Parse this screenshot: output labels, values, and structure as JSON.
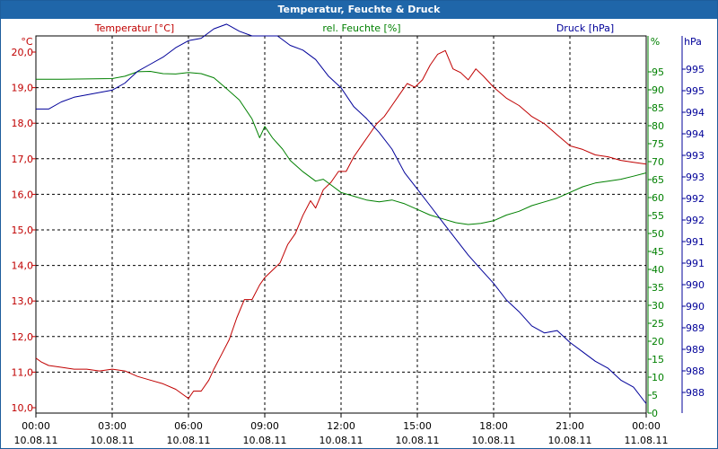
{
  "window": {
    "title": "Temperatur, Feuchte & Druck"
  },
  "chart_data": {
    "type": "line",
    "title": "Temperatur, Feuchte & Druck",
    "x_ticks": [
      {
        "time": "00:00",
        "date": "10.08.11"
      },
      {
        "time": "03:00",
        "date": "10.08.11"
      },
      {
        "time": "06:00",
        "date": "10.08.11"
      },
      {
        "time": "09:00",
        "date": "10.08.11"
      },
      {
        "time": "12:00",
        "date": "10.08.11"
      },
      {
        "time": "15:00",
        "date": "10.08.11"
      },
      {
        "time": "18:00",
        "date": "10.08.11"
      },
      {
        "time": "21:00",
        "date": "10.08.11"
      },
      {
        "time": "00:00",
        "date": "11.08.11"
      }
    ],
    "x_range_hours": [
      0,
      24
    ],
    "axes": {
      "temperature": {
        "label": "Temperatur [°C]",
        "unit": "°C",
        "range": [
          9.9,
          20.2
        ],
        "ticks": [
          "10,0",
          "11,0",
          "12,0",
          "13,0",
          "14,0",
          "15,0",
          "16,0",
          "17,0",
          "18,0",
          "19,0",
          "20,0"
        ],
        "color": "#c00000"
      },
      "humidity": {
        "label": "rel. Feuchte [%]",
        "unit": "%",
        "range": [
          0,
          100
        ],
        "ticks": [
          "0",
          "5",
          "10",
          "15",
          "20",
          "25",
          "30",
          "35",
          "40",
          "45",
          "50",
          "55",
          "60",
          "65",
          "70",
          "75",
          "80",
          "85",
          "90",
          "95"
        ],
        "color": "#008000"
      },
      "pressure": {
        "label": "Druck [hPa]",
        "unit": "hPa",
        "range": [
          987.7,
          995.7
        ],
        "ticks": [
          "988",
          "988",
          "989",
          "989",
          "990",
          "990",
          "991",
          "991",
          "992",
          "992",
          "993",
          "993",
          "994",
          "994",
          "995",
          "995"
        ],
        "color": "#000099"
      }
    },
    "grid": true,
    "series": [
      {
        "name": "Temperatur [°C]",
        "axis": "temperature",
        "color": "#c00000",
        "points": [
          [
            0,
            11.4
          ],
          [
            0.2,
            11.3
          ],
          [
            0.5,
            11.2
          ],
          [
            1.0,
            11.15
          ],
          [
            1.5,
            11.1
          ],
          [
            2.0,
            11.1
          ],
          [
            2.5,
            11.05
          ],
          [
            3.0,
            11.1
          ],
          [
            3.5,
            11.05
          ],
          [
            4.0,
            10.9
          ],
          [
            4.5,
            10.8
          ],
          [
            5.0,
            10.7
          ],
          [
            5.5,
            10.55
          ],
          [
            5.8,
            10.4
          ],
          [
            6.0,
            10.3
          ],
          [
            6.2,
            10.5
          ],
          [
            6.5,
            10.5
          ],
          [
            6.8,
            10.8
          ],
          [
            7.0,
            11.1
          ],
          [
            7.3,
            11.5
          ],
          [
            7.6,
            11.9
          ],
          [
            7.9,
            12.5
          ],
          [
            8.2,
            13.0
          ],
          [
            8.5,
            13.0
          ],
          [
            8.8,
            13.4
          ],
          [
            9.0,
            13.6
          ],
          [
            9.3,
            13.8
          ],
          [
            9.6,
            14.0
          ],
          [
            9.9,
            14.5
          ],
          [
            10.2,
            14.8
          ],
          [
            10.5,
            15.3
          ],
          [
            10.8,
            15.7
          ],
          [
            11.0,
            15.5
          ],
          [
            11.3,
            16.0
          ],
          [
            11.6,
            16.2
          ],
          [
            11.9,
            16.5
          ],
          [
            12.2,
            16.5
          ],
          [
            12.5,
            16.9
          ],
          [
            12.8,
            17.2
          ],
          [
            13.1,
            17.5
          ],
          [
            13.4,
            17.8
          ],
          [
            13.7,
            18.0
          ],
          [
            14.0,
            18.3
          ],
          [
            14.3,
            18.6
          ],
          [
            14.6,
            18.9
          ],
          [
            14.9,
            18.8
          ],
          [
            15.2,
            19.0
          ],
          [
            15.5,
            19.4
          ],
          [
            15.8,
            19.7
          ],
          [
            16.1,
            19.8
          ],
          [
            16.4,
            19.3
          ],
          [
            16.7,
            19.2
          ],
          [
            17.0,
            19.0
          ],
          [
            17.3,
            19.3
          ],
          [
            17.6,
            19.1
          ],
          [
            18.0,
            18.8
          ],
          [
            18.5,
            18.5
          ],
          [
            19.0,
            18.3
          ],
          [
            19.5,
            18.0
          ],
          [
            20.0,
            17.8
          ],
          [
            20.5,
            17.5
          ],
          [
            21.0,
            17.2
          ],
          [
            21.5,
            17.1
          ],
          [
            22.0,
            16.95
          ],
          [
            22.5,
            16.9
          ],
          [
            23.0,
            16.8
          ],
          [
            23.5,
            16.75
          ],
          [
            24.0,
            16.7
          ]
        ]
      },
      {
        "name": "rel. Feuchte [%]",
        "axis": "humidity",
        "color": "#008000",
        "points": [
          [
            0,
            88.5
          ],
          [
            1,
            88.5
          ],
          [
            2,
            88.6
          ],
          [
            3,
            88.7
          ],
          [
            3.5,
            89.3
          ],
          [
            4.0,
            90.5
          ],
          [
            4.5,
            90.6
          ],
          [
            5.0,
            90.0
          ],
          [
            5.5,
            89.9
          ],
          [
            6.0,
            90.3
          ],
          [
            6.5,
            90.0
          ],
          [
            7.0,
            88.9
          ],
          [
            7.5,
            86.0
          ],
          [
            8.0,
            83.0
          ],
          [
            8.5,
            78.0
          ],
          [
            8.8,
            73.0
          ],
          [
            9.0,
            76.0
          ],
          [
            9.3,
            73.0
          ],
          [
            9.7,
            70.0
          ],
          [
            10.0,
            67.0
          ],
          [
            10.5,
            64.0
          ],
          [
            11.0,
            61.5
          ],
          [
            11.3,
            62.0
          ],
          [
            11.6,
            60.5
          ],
          [
            12.0,
            58.5
          ],
          [
            12.5,
            57.5
          ],
          [
            13.0,
            56.5
          ],
          [
            13.5,
            56.0
          ],
          [
            14.0,
            56.5
          ],
          [
            14.5,
            55.5
          ],
          [
            15.0,
            54.0
          ],
          [
            15.5,
            52.5
          ],
          [
            16.0,
            51.5
          ],
          [
            16.5,
            50.5
          ],
          [
            17.0,
            50.0
          ],
          [
            17.5,
            50.3
          ],
          [
            18.0,
            51.0
          ],
          [
            18.5,
            52.5
          ],
          [
            19.0,
            53.5
          ],
          [
            19.5,
            55.0
          ],
          [
            20.0,
            56.0
          ],
          [
            20.5,
            57.0
          ],
          [
            21.0,
            58.5
          ],
          [
            21.5,
            60.0
          ],
          [
            22.0,
            61.0
          ],
          [
            22.5,
            61.5
          ],
          [
            23.0,
            62.0
          ],
          [
            23.5,
            62.8
          ],
          [
            24.0,
            63.7
          ]
        ]
      },
      {
        "name": "Druck [hPa]",
        "axis": "pressure",
        "color": "#000099",
        "points": [
          [
            0,
            994.15
          ],
          [
            0.5,
            994.15
          ],
          [
            1.0,
            994.3
          ],
          [
            1.5,
            994.4
          ],
          [
            2.0,
            994.45
          ],
          [
            2.5,
            994.5
          ],
          [
            3.0,
            994.55
          ],
          [
            3.5,
            994.7
          ],
          [
            4.0,
            994.95
          ],
          [
            4.5,
            995.1
          ],
          [
            5.0,
            995.25
          ],
          [
            5.5,
            995.45
          ],
          [
            6.0,
            995.6
          ],
          [
            6.5,
            995.65
          ],
          [
            7.0,
            995.85
          ],
          [
            7.5,
            995.95
          ],
          [
            8.0,
            995.8
          ],
          [
            8.5,
            995.7
          ],
          [
            9.0,
            995.7
          ],
          [
            9.5,
            995.7
          ],
          [
            10.0,
            995.5
          ],
          [
            10.5,
            995.4
          ],
          [
            11.0,
            995.2
          ],
          [
            11.5,
            994.85
          ],
          [
            12.0,
            994.6
          ],
          [
            12.5,
            994.2
          ],
          [
            13.0,
            993.95
          ],
          [
            13.5,
            993.65
          ],
          [
            14.0,
            993.3
          ],
          [
            14.5,
            992.8
          ],
          [
            15.0,
            992.45
          ],
          [
            15.5,
            992.1
          ],
          [
            16.0,
            991.75
          ],
          [
            16.5,
            991.4
          ],
          [
            17.0,
            991.05
          ],
          [
            17.5,
            990.75
          ],
          [
            18.0,
            990.45
          ],
          [
            18.5,
            990.1
          ],
          [
            19.0,
            989.85
          ],
          [
            19.5,
            989.55
          ],
          [
            20.0,
            989.4
          ],
          [
            20.5,
            989.45
          ],
          [
            21.0,
            989.2
          ],
          [
            21.5,
            989.0
          ],
          [
            22.0,
            988.8
          ],
          [
            22.5,
            988.65
          ],
          [
            23.0,
            988.4
          ],
          [
            23.5,
            988.25
          ],
          [
            24.0,
            987.9
          ]
        ]
      }
    ]
  }
}
